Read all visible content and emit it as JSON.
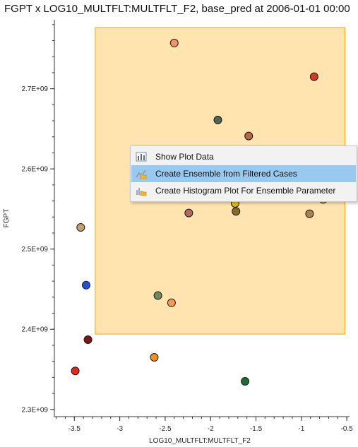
{
  "plot_title": "FGPT x LOG10_MULTFLT:MULTFLT_F2, base_pred at 2006-01-01 00:00",
  "chart_data": {
    "type": "scatter",
    "title": "FGPT x LOG10_MULTFLT:MULTFLT_F2, base_pred at 2006-01-01 00:00",
    "xlabel": "LOG10_MULTFLT:MULTFLT_F2",
    "ylabel": "FGPT",
    "xlim": [
      -3.72,
      -0.47
    ],
    "ylim": [
      2291000000.0,
      2786000000.0
    ],
    "x_ticks": [
      -3.5,
      -3,
      -2.5,
      -2,
      -1.5,
      -1,
      -0.5
    ],
    "x_tick_labels": [
      "-3.5",
      "-3",
      "-2.5",
      "-2",
      "-1.5",
      "-1",
      "-0.5"
    ],
    "y_ticks": [
      2300000000.0,
      2400000000.0,
      2500000000.0,
      2600000000.0,
      2700000000.0
    ],
    "y_tick_labels": [
      "2.3E+09",
      "2.4E+09",
      "2.5E+09",
      "2.6E+09",
      "2.7E+09"
    ],
    "grid": false,
    "filter_region": {
      "x": [
        -3.27,
        -0.52
      ],
      "y": [
        2394000000.0,
        2786000000.0
      ],
      "fill": "#ffe4b0",
      "stroke": "#f2a516"
    },
    "points": [
      {
        "x": -2.4,
        "y": 2757000000.0,
        "color": "#f0926a"
      },
      {
        "x": -0.86,
        "y": 2715000000.0,
        "color": "#d23c1c"
      },
      {
        "x": -1.92,
        "y": 2661000000.0,
        "color": "#4a6456"
      },
      {
        "x": -1.58,
        "y": 2641000000.0,
        "color": "#b06a4a"
      },
      {
        "x": -2.0,
        "y": 2568000000.0,
        "color": "#f09a28"
      },
      {
        "x": -1.73,
        "y": 2557000000.0,
        "color": "#e5bd18"
      },
      {
        "x": -0.76,
        "y": 2562000000.0,
        "color": "#c9aa14"
      },
      {
        "x": -1.72,
        "y": 2547000000.0,
        "color": "#8b6a24"
      },
      {
        "x": -2.24,
        "y": 2545000000.0,
        "color": "#b86660"
      },
      {
        "x": -0.91,
        "y": 2544000000.0,
        "color": "#a8834e"
      },
      {
        "x": -3.43,
        "y": 2527000000.0,
        "color": "#c4a074"
      },
      {
        "x": -3.37,
        "y": 2455000000.0,
        "color": "#2250d6"
      },
      {
        "x": -2.58,
        "y": 2442000000.0,
        "color": "#6e8a5a"
      },
      {
        "x": -2.43,
        "y": 2433000000.0,
        "color": "#f59a50"
      },
      {
        "x": -3.35,
        "y": 2387000000.0,
        "color": "#7c160e"
      },
      {
        "x": -2.62,
        "y": 2365000000.0,
        "color": "#f0901e"
      },
      {
        "x": -3.49,
        "y": 2348000000.0,
        "color": "#e62818"
      },
      {
        "x": -1.62,
        "y": 2335000000.0,
        "color": "#1c6e34"
      }
    ]
  },
  "context_menu": {
    "items": [
      {
        "label": "Show Plot Data",
        "icon": "bar-chart-icon",
        "active": false
      },
      {
        "label": "Create Ensemble from Filtered Cases",
        "icon": "ensemble-folder-icon",
        "active": true
      },
      {
        "label": "Create Histogram Plot For Ensemble Parameter",
        "icon": "histogram-folder-icon",
        "active": false
      }
    ]
  }
}
